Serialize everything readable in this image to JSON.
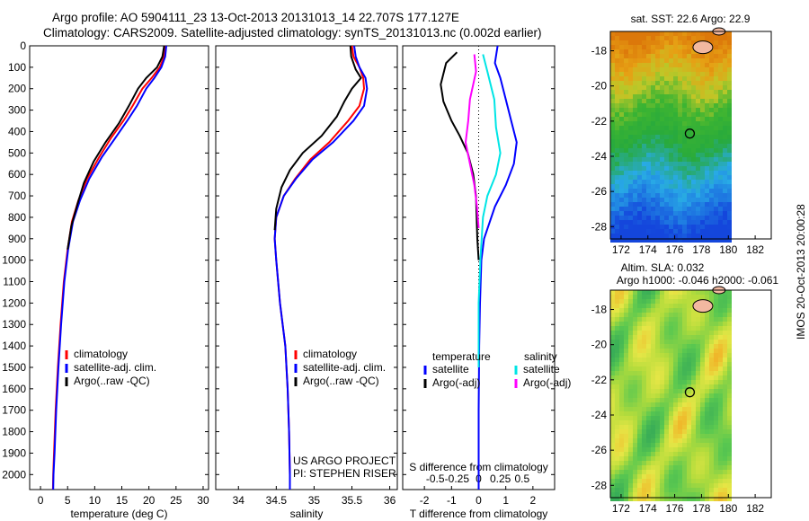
{
  "header": {
    "line1": "Argo profile: AO 5904111_23 13-Oct-2013 20131013_14 22.707S 177.127E",
    "line2": "Climatology: CARS2009. Satellite-adjusted climatology: synTS_20131013.nc (0.002d earlier)"
  },
  "side_label": "IMOS 20-Oct-2013 20:00:28",
  "colors": {
    "climatology": "#ff0000",
    "satellite": "#0000ff",
    "argo": "#000000",
    "salinity_satellite": "#00e5e5",
    "salinity_argo": "#ff00ff"
  },
  "chart_data": [
    {
      "type": "line",
      "panel": "temperature",
      "xlabel": "temperature (deg C)",
      "xlim": [
        -2,
        31
      ],
      "xticks": [
        0,
        5,
        10,
        15,
        20,
        25,
        30
      ],
      "ylim": [
        0,
        2070
      ],
      "yticks": [
        0,
        100,
        200,
        300,
        400,
        500,
        600,
        700,
        800,
        900,
        1000,
        1100,
        1200,
        1300,
        1400,
        1500,
        1600,
        1700,
        1800,
        1900,
        2000
      ],
      "legend": [
        "climatology",
        "satellite-adj. clim.",
        "Argo(..raw -QC)"
      ],
      "series": [
        {
          "name": "climatology",
          "color": "#ff0000",
          "points": [
            [
              23.0,
              0
            ],
            [
              22.8,
              50
            ],
            [
              22.0,
              100
            ],
            [
              20.5,
              150
            ],
            [
              18.8,
              200
            ],
            [
              17.0,
              280
            ],
            [
              15.3,
              350
            ],
            [
              13.0,
              430
            ],
            [
              10.8,
              520
            ],
            [
              8.6,
              620
            ],
            [
              7.0,
              720
            ],
            [
              5.8,
              820
            ],
            [
              5.0,
              950
            ],
            [
              4.3,
              1100
            ],
            [
              3.7,
              1300
            ],
            [
              3.2,
              1500
            ],
            [
              2.8,
              1700
            ],
            [
              2.5,
              1900
            ],
            [
              2.35,
              2000
            ],
            [
              2.3,
              2070
            ]
          ]
        },
        {
          "name": "satellite-adj. clim.",
          "color": "#0000ff",
          "points": [
            [
              23.2,
              0
            ],
            [
              23.0,
              50
            ],
            [
              22.3,
              100
            ],
            [
              21.0,
              150
            ],
            [
              19.5,
              200
            ],
            [
              17.8,
              280
            ],
            [
              16.0,
              350
            ],
            [
              13.8,
              430
            ],
            [
              11.3,
              520
            ],
            [
              9.0,
              620
            ],
            [
              7.3,
              720
            ],
            [
              6.0,
              820
            ],
            [
              5.1,
              950
            ],
            [
              4.4,
              1100
            ],
            [
              3.8,
              1300
            ],
            [
              3.3,
              1500
            ],
            [
              2.9,
              1700
            ],
            [
              2.6,
              1900
            ],
            [
              2.4,
              2000
            ],
            [
              2.35,
              2070
            ]
          ]
        },
        {
          "name": "Argo(..raw -QC)",
          "color": "#000000",
          "points": [
            [
              22.8,
              0
            ],
            [
              22.5,
              50
            ],
            [
              21.5,
              100
            ],
            [
              19.5,
              150
            ],
            [
              18.0,
              200
            ],
            [
              16.3,
              280
            ],
            [
              14.5,
              360
            ],
            [
              12.0,
              450
            ],
            [
              9.8,
              540
            ],
            [
              8.0,
              640
            ],
            [
              6.8,
              740
            ],
            [
              5.7,
              840
            ],
            [
              5.0,
              950
            ]
          ]
        }
      ]
    },
    {
      "type": "line",
      "panel": "salinity",
      "xlabel": "salinity",
      "xlim": [
        33.7,
        36.1
      ],
      "xticks": [
        34,
        34.5,
        35,
        35.5,
        36
      ],
      "ylim": [
        0,
        2070
      ],
      "legend": [
        "climatology",
        "satellite-adj. clim.",
        "Argo(..raw -QC)"
      ],
      "annotations": [
        "US ARGO PROJECT",
        "PI: STEPHEN RISER"
      ],
      "series": [
        {
          "name": "climatology",
          "color": "#ff0000",
          "points": [
            [
              35.5,
              0
            ],
            [
              35.52,
              50
            ],
            [
              35.6,
              100
            ],
            [
              35.65,
              150
            ],
            [
              35.66,
              200
            ],
            [
              35.6,
              280
            ],
            [
              35.45,
              350
            ],
            [
              35.2,
              450
            ],
            [
              34.95,
              530
            ],
            [
              34.75,
              620
            ],
            [
              34.6,
              700
            ],
            [
              34.5,
              800
            ],
            [
              34.48,
              900
            ],
            [
              34.5,
              1000
            ],
            [
              34.55,
              1200
            ],
            [
              34.62,
              1400
            ],
            [
              34.65,
              1600
            ],
            [
              34.67,
              1800
            ],
            [
              34.68,
              2000
            ],
            [
              34.68,
              2070
            ]
          ]
        },
        {
          "name": "satellite-adj. clim.",
          "color": "#0000ff",
          "points": [
            [
              35.53,
              0
            ],
            [
              35.55,
              50
            ],
            [
              35.6,
              100
            ],
            [
              35.68,
              150
            ],
            [
              35.7,
              200
            ],
            [
              35.66,
              280
            ],
            [
              35.52,
              350
            ],
            [
              35.25,
              450
            ],
            [
              34.98,
              530
            ],
            [
              34.76,
              620
            ],
            [
              34.6,
              700
            ],
            [
              34.5,
              800
            ],
            [
              34.48,
              900
            ],
            [
              34.5,
              1000
            ],
            [
              34.55,
              1200
            ],
            [
              34.62,
              1400
            ],
            [
              34.65,
              1600
            ],
            [
              34.67,
              1800
            ],
            [
              34.68,
              2000
            ],
            [
              34.68,
              2070
            ]
          ]
        },
        {
          "name": "Argo(..raw -QC)",
          "color": "#000000",
          "points": [
            [
              35.48,
              0
            ],
            [
              35.49,
              50
            ],
            [
              35.55,
              110
            ],
            [
              35.62,
              150
            ],
            [
              35.5,
              200
            ],
            [
              35.4,
              260
            ],
            [
              35.3,
              330
            ],
            [
              35.1,
              420
            ],
            [
              34.85,
              500
            ],
            [
              34.68,
              580
            ],
            [
              34.57,
              660
            ],
            [
              34.5,
              760
            ],
            [
              34.48,
              860
            ]
          ]
        }
      ]
    },
    {
      "type": "line",
      "panel": "difference",
      "xlabel": "T difference from climatology",
      "xlabel2": "S difference from climatology",
      "xlim": [
        -2.8,
        2.8
      ],
      "xticks": [
        -2,
        -1,
        0,
        1,
        2
      ],
      "xticks_s": [
        -0.5,
        -0.25,
        0,
        0.25,
        0.5
      ],
      "ylim": [
        0,
        2070
      ],
      "legend_headers": [
        "temperature",
        "salinity"
      ],
      "legend": [
        "satellite",
        "Argo(-adj)",
        "satellite",
        "Argo(-adj)"
      ],
      "series": [
        {
          "name": "temperature satellite",
          "color": "#0000ff",
          "points": [
            [
              0.7,
              0
            ],
            [
              0.6,
              80
            ],
            [
              0.8,
              150
            ],
            [
              1.0,
              250
            ],
            [
              1.2,
              350
            ],
            [
              1.4,
              450
            ],
            [
              1.3,
              550
            ],
            [
              1.0,
              650
            ],
            [
              0.6,
              750
            ],
            [
              0.2,
              900
            ],
            [
              0.1,
              1000
            ],
            [
              0.05,
              1200
            ],
            [
              0.02,
              1400
            ],
            [
              0,
              1700
            ],
            [
              0,
              2070
            ]
          ]
        },
        {
          "name": "temperature Argo(-adj)",
          "color": "#000000",
          "points": [
            [
              -0.8,
              30
            ],
            [
              -1.2,
              80
            ],
            [
              -1.4,
              180
            ],
            [
              -1.3,
              260
            ],
            [
              -1.0,
              350
            ],
            [
              -0.7,
              420
            ],
            [
              -0.4,
              500
            ],
            [
              -0.2,
              600
            ],
            [
              -0.1,
              700
            ],
            [
              -0.05,
              900
            ],
            [
              0,
              1000
            ]
          ]
        },
        {
          "name": "salinity satellite",
          "color": "#00e5e5",
          "points": [
            [
              0.05,
              40
            ],
            [
              0.1,
              120
            ],
            [
              0.18,
              250
            ],
            [
              0.2,
              380
            ],
            [
              0.25,
              500
            ],
            [
              0.2,
              600
            ],
            [
              0.1,
              700
            ],
            [
              0.05,
              800
            ],
            [
              0.02,
              1000
            ],
            [
              0,
              1200
            ],
            [
              0,
              1500
            ]
          ]
        },
        {
          "name": "salinity Argo(-adj)",
          "color": "#ff00ff",
          "points": [
            [
              -0.05,
              40
            ],
            [
              -0.03,
              120
            ],
            [
              -0.1,
              250
            ],
            [
              -0.12,
              350
            ],
            [
              -0.15,
              450
            ],
            [
              -0.1,
              550
            ],
            [
              -0.05,
              650
            ],
            [
              -0.02,
              750
            ],
            [
              0,
              850
            ]
          ]
        }
      ]
    },
    {
      "type": "heatmap",
      "panel": "sst_map",
      "title": "sat. SST: 22.6  Argo: 22.9",
      "xticks": [
        172,
        174,
        176,
        178,
        180,
        182
      ],
      "yticks": [
        -18,
        -20,
        -22,
        -24,
        -26,
        -28
      ],
      "xlim": [
        171.2,
        183.2
      ],
      "ylim": [
        -28.7,
        -16.9
      ],
      "marker": [
        177.127,
        -22.707
      ]
    },
    {
      "type": "heatmap",
      "panel": "sla_map",
      "title": "Altim. SLA: 0.032",
      "subtitle": "Argo h1000: -0.046  h2000: -0.061",
      "xticks": [
        172,
        174,
        176,
        178,
        180,
        182
      ],
      "yticks": [
        -18,
        -20,
        -22,
        -24,
        -26,
        -28
      ],
      "xlim": [
        171.2,
        183.2
      ],
      "ylim": [
        -28.7,
        -16.9
      ],
      "marker": [
        177.127,
        -22.707
      ]
    }
  ]
}
